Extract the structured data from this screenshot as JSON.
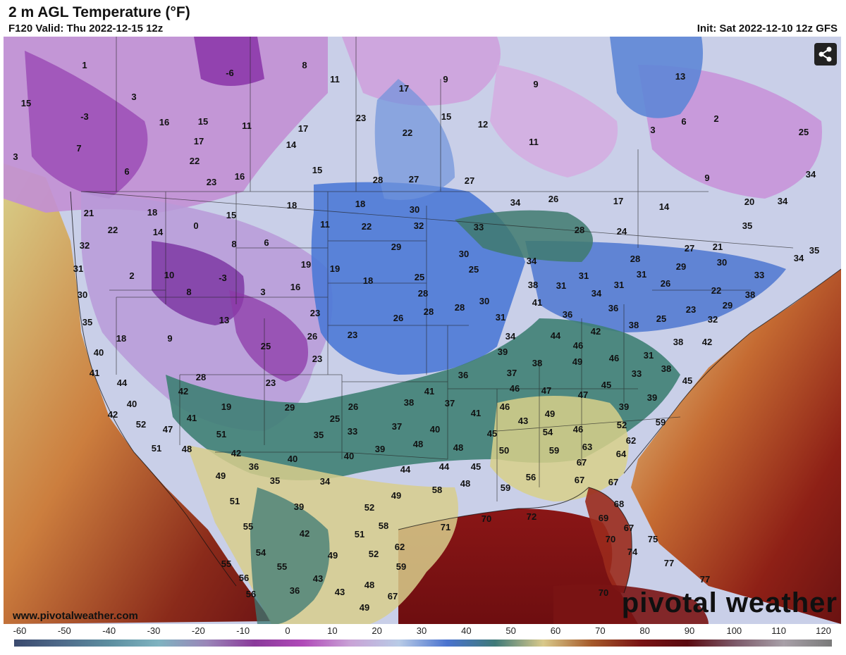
{
  "header": {
    "title": "2 m AGL Temperature (°F)",
    "valid": "F120 Valid: Thu 2022-12-15 12z",
    "init": "Init: Sat 2022-12-10 12z GFS"
  },
  "footer": {
    "url": "www.pivotalweather.com",
    "brand": "pivotal weather"
  },
  "share_icon": "share-icon",
  "colorbar": {
    "ticks": [
      "-60",
      "-50",
      "-40",
      "-30",
      "-20",
      "-10",
      "0",
      "10",
      "20",
      "30",
      "40",
      "50",
      "60",
      "70",
      "80",
      "90",
      "100",
      "110",
      "120"
    ],
    "colors": [
      "#3b4a6e",
      "#4f6b8a",
      "#5d8fa0",
      "#7fb3c0",
      "#9a86b8",
      "#8a3a9a",
      "#b04ab8",
      "#c9a3d6",
      "#b8cbe6",
      "#4a73cf",
      "#3f7a78",
      "#d9c98a",
      "#a55a2a",
      "#7a1414",
      "#5a0a10",
      "#7d5a6a",
      "#a8a0a8",
      "#7a7a7a"
    ]
  },
  "map_labels": [
    [
      "1",
      120,
      92
    ],
    [
      "3",
      190,
      137
    ],
    [
      "15",
      37,
      146
    ],
    [
      "-3",
      120,
      165
    ],
    [
      "7",
      112,
      210
    ],
    [
      "6",
      180,
      243
    ],
    [
      "3",
      22,
      222
    ],
    [
      "16",
      233,
      173
    ],
    [
      "15",
      288,
      172
    ],
    [
      "17",
      282,
      200
    ],
    [
      "22",
      276,
      228
    ],
    [
      "23",
      300,
      258
    ],
    [
      "11",
      350,
      178
    ],
    [
      "16",
      340,
      250
    ],
    [
      "-6",
      326,
      103
    ],
    [
      "8",
      432,
      92
    ],
    [
      "11",
      475,
      112
    ],
    [
      "17",
      430,
      182
    ],
    [
      "14",
      413,
      205
    ],
    [
      "15",
      450,
      241
    ],
    [
      "9",
      632,
      112
    ],
    [
      "17",
      573,
      125
    ],
    [
      "23",
      512,
      167
    ],
    [
      "22",
      578,
      188
    ],
    [
      "15",
      633,
      165
    ],
    [
      "12",
      685,
      176
    ],
    [
      "9",
      760,
      119
    ],
    [
      "11",
      757,
      201
    ],
    [
      "13",
      965,
      108
    ],
    [
      "6",
      970,
      172
    ],
    [
      "2",
      1016,
      168
    ],
    [
      "3",
      926,
      184
    ],
    [
      "25",
      1140,
      187
    ],
    [
      "28",
      536,
      255
    ],
    [
      "27",
      587,
      254
    ],
    [
      "27",
      666,
      256
    ],
    [
      "26",
      785,
      282
    ],
    [
      "17",
      877,
      285
    ],
    [
      "14",
      942,
      293
    ],
    [
      "9",
      1003,
      252
    ],
    [
      "20",
      1063,
      286
    ],
    [
      "34",
      1110,
      285
    ],
    [
      "34",
      1150,
      247
    ],
    [
      "35",
      1060,
      320
    ],
    [
      "35",
      1155,
      355
    ],
    [
      "34",
      1133,
      366
    ],
    [
      "24",
      882,
      328
    ],
    [
      "28",
      822,
      326
    ],
    [
      "21",
      1018,
      350
    ],
    [
      "27",
      978,
      352
    ],
    [
      "30",
      1024,
      372
    ],
    [
      "33",
      1077,
      390
    ],
    [
      "29",
      966,
      378
    ],
    [
      "26",
      944,
      402
    ],
    [
      "22",
      1016,
      412
    ],
    [
      "28",
      901,
      367
    ],
    [
      "31",
      910,
      389
    ],
    [
      "29",
      1032,
      433
    ],
    [
      "38",
      1064,
      418
    ],
    [
      "32",
      1011,
      453
    ],
    [
      "23",
      980,
      439
    ],
    [
      "25",
      938,
      452
    ],
    [
      "38",
      899,
      461
    ],
    [
      "31",
      920,
      504
    ],
    [
      "38",
      962,
      485
    ],
    [
      "42",
      1003,
      485
    ],
    [
      "33",
      903,
      530
    ],
    [
      "38",
      945,
      523
    ],
    [
      "45",
      975,
      540
    ],
    [
      "21",
      126,
      302
    ],
    [
      "18",
      216,
      301
    ],
    [
      "22",
      160,
      326
    ],
    [
      "14",
      224,
      329
    ],
    [
      "0",
      278,
      320
    ],
    [
      "15",
      328,
      305
    ],
    [
      "18",
      414,
      291
    ],
    [
      "11",
      461,
      318
    ],
    [
      "18",
      511,
      289
    ],
    [
      "22",
      520,
      321
    ],
    [
      "6",
      378,
      344
    ],
    [
      "8",
      332,
      346
    ],
    [
      "32",
      120,
      348
    ],
    [
      "31",
      111,
      381
    ],
    [
      "2",
      187,
      391
    ],
    [
      "10",
      240,
      390
    ],
    [
      "8",
      268,
      414
    ],
    [
      "-3",
      316,
      394
    ],
    [
      "3",
      373,
      414
    ],
    [
      "16",
      419,
      407
    ],
    [
      "19",
      434,
      375
    ],
    [
      "19",
      475,
      381
    ],
    [
      "18",
      522,
      398
    ],
    [
      "30",
      117,
      418
    ],
    [
      "35",
      124,
      457
    ],
    [
      "18",
      172,
      480
    ],
    [
      "9",
      241,
      480
    ],
    [
      "13",
      318,
      454
    ],
    [
      "23",
      447,
      444
    ],
    [
      "26",
      443,
      477
    ],
    [
      "25",
      377,
      491
    ],
    [
      "23",
      450,
      509
    ],
    [
      "23",
      500,
      475
    ],
    [
      "29",
      562,
      350
    ],
    [
      "30",
      658,
      360
    ],
    [
      "25",
      672,
      382
    ],
    [
      "32",
      594,
      320
    ],
    [
      "30",
      588,
      297
    ],
    [
      "33",
      679,
      322
    ],
    [
      "34",
      731,
      287
    ],
    [
      "25",
      595,
      393
    ],
    [
      "28",
      600,
      416
    ],
    [
      "28",
      608,
      442
    ],
    [
      "26",
      565,
      451
    ],
    [
      "28",
      652,
      436
    ],
    [
      "30",
      687,
      427
    ],
    [
      "31",
      710,
      450
    ],
    [
      "34",
      724,
      477
    ],
    [
      "34",
      754,
      370
    ],
    [
      "38",
      756,
      404
    ],
    [
      "31",
      796,
      405
    ],
    [
      "31",
      828,
      391
    ],
    [
      "34",
      846,
      416
    ],
    [
      "31",
      878,
      404
    ],
    [
      "36",
      870,
      437
    ],
    [
      "41",
      762,
      429
    ],
    [
      "36",
      805,
      446
    ],
    [
      "44",
      788,
      476
    ],
    [
      "42",
      845,
      470
    ],
    [
      "46",
      820,
      490
    ],
    [
      "49",
      819,
      513
    ],
    [
      "46",
      871,
      508
    ],
    [
      "39",
      713,
      499
    ],
    [
      "38",
      762,
      515
    ],
    [
      "37",
      726,
      529
    ],
    [
      "36",
      657,
      532
    ],
    [
      "40",
      140,
      500
    ],
    [
      "41",
      134,
      529
    ],
    [
      "44",
      173,
      543
    ],
    [
      "40",
      187,
      573
    ],
    [
      "42",
      160,
      588
    ],
    [
      "52",
      200,
      602
    ],
    [
      "47",
      238,
      609
    ],
    [
      "51",
      222,
      636
    ],
    [
      "48",
      265,
      637
    ],
    [
      "42",
      260,
      555
    ],
    [
      "28",
      285,
      535
    ],
    [
      "41",
      272,
      593
    ],
    [
      "19",
      321,
      577
    ],
    [
      "23",
      384,
      543
    ],
    [
      "29",
      411,
      578
    ],
    [
      "25",
      475,
      594
    ],
    [
      "26",
      501,
      577
    ],
    [
      "33",
      500,
      612
    ],
    [
      "35",
      452,
      617
    ],
    [
      "36",
      360,
      662
    ],
    [
      "40",
      415,
      651
    ],
    [
      "42",
      335,
      643
    ],
    [
      "51",
      314,
      616
    ],
    [
      "49",
      313,
      675
    ],
    [
      "40",
      495,
      647
    ],
    [
      "39",
      539,
      637
    ],
    [
      "37",
      563,
      605
    ],
    [
      "40",
      617,
      609
    ],
    [
      "41",
      609,
      555
    ],
    [
      "38",
      580,
      571
    ],
    [
      "37",
      638,
      572
    ],
    [
      "41",
      675,
      586
    ],
    [
      "48",
      593,
      630
    ],
    [
      "48",
      650,
      635
    ],
    [
      "45",
      698,
      615
    ],
    [
      "43",
      742,
      597
    ],
    [
      "46",
      716,
      577
    ],
    [
      "47",
      775,
      554
    ],
    [
      "47",
      827,
      560
    ],
    [
      "49",
      780,
      587
    ],
    [
      "54",
      777,
      613
    ],
    [
      "46",
      820,
      609
    ],
    [
      "45",
      860,
      546
    ],
    [
      "39",
      885,
      577
    ],
    [
      "39",
      925,
      564
    ],
    [
      "52",
      882,
      603
    ],
    [
      "59",
      937,
      599
    ],
    [
      "62",
      895,
      625
    ],
    [
      "50",
      715,
      639
    ],
    [
      "45",
      675,
      662
    ],
    [
      "44",
      575,
      666
    ],
    [
      "44",
      630,
      662
    ],
    [
      "48",
      660,
      686
    ],
    [
      "59",
      786,
      639
    ],
    [
      "63",
      833,
      634
    ],
    [
      "64",
      881,
      644
    ],
    [
      "67",
      825,
      656
    ],
    [
      "67",
      822,
      681
    ],
    [
      "67",
      870,
      684
    ],
    [
      "56",
      753,
      677
    ],
    [
      "59",
      717,
      692
    ],
    [
      "58",
      620,
      695
    ],
    [
      "49",
      562,
      703
    ],
    [
      "52",
      524,
      720
    ],
    [
      "58",
      544,
      746
    ],
    [
      "34",
      461,
      683
    ],
    [
      "35",
      390,
      682
    ],
    [
      "39",
      424,
      719
    ],
    [
      "51",
      333,
      711
    ],
    [
      "55",
      352,
      747
    ],
    [
      "42",
      432,
      757
    ],
    [
      "51",
      510,
      758
    ],
    [
      "52",
      530,
      786
    ],
    [
      "62",
      567,
      776
    ],
    [
      "59",
      569,
      804
    ],
    [
      "49",
      472,
      788
    ],
    [
      "48",
      524,
      830
    ],
    [
      "43",
      451,
      821
    ],
    [
      "43",
      482,
      840
    ],
    [
      "49",
      517,
      862
    ],
    [
      "67",
      557,
      846
    ],
    [
      "54",
      370,
      784
    ],
    [
      "55",
      400,
      804
    ],
    [
      "55",
      321,
      800
    ],
    [
      "56",
      346,
      820
    ],
    [
      "36",
      418,
      838
    ],
    [
      "56",
      356,
      843
    ],
    [
      "71",
      632,
      748
    ],
    [
      "70",
      690,
      736
    ],
    [
      "72",
      754,
      733
    ],
    [
      "69",
      856,
      735
    ],
    [
      "68",
      878,
      715
    ],
    [
      "67",
      892,
      749
    ],
    [
      "70",
      866,
      765
    ],
    [
      "74",
      897,
      783
    ],
    [
      "75",
      926,
      765
    ],
    [
      "77",
      949,
      799
    ],
    [
      "77",
      1000,
      822
    ],
    [
      "70",
      856,
      841
    ],
    [
      "46",
      730,
      551
    ]
  ]
}
